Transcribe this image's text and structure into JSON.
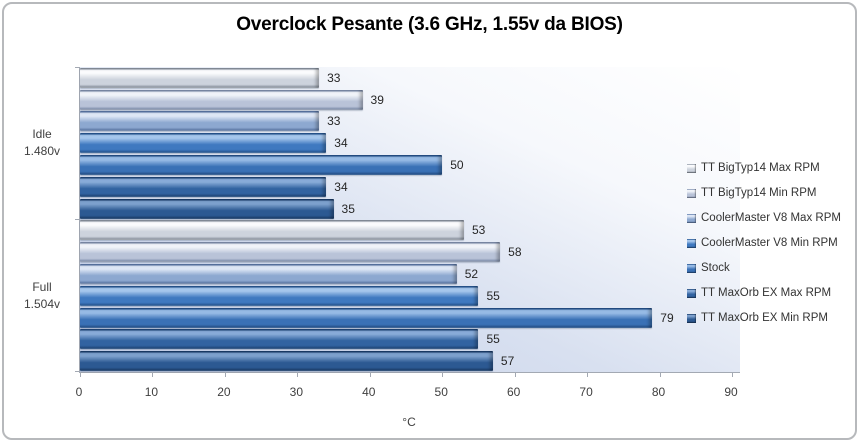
{
  "chart_data": {
    "type": "bar",
    "orientation": "horizontal",
    "title": "Overclock Pesante (3.6 GHz, 1.55v da BIOS)",
    "xlabel": "°C",
    "xlim": [
      0,
      90
    ],
    "x_ticks": [
      0,
      10,
      20,
      30,
      40,
      50,
      60,
      70,
      80,
      90
    ],
    "grid": false,
    "value_labels": true,
    "legend_position": "right",
    "categories": [
      {
        "lines": [
          "Idle",
          "1.480v"
        ]
      },
      {
        "lines": [
          "Full",
          "1.504v"
        ]
      }
    ],
    "series": [
      {
        "name": "TT BigTyp14 Max RPM",
        "values": [
          33,
          53
        ],
        "light": "#fafbfd",
        "base": "#cdd3dd",
        "dark": "#8f98a6"
      },
      {
        "name": "TT BigTyp14 Min RPM",
        "values": [
          39,
          58
        ],
        "light": "#f0f3f9",
        "base": "#b9c3d8",
        "dark": "#8494b3"
      },
      {
        "name": "CoolerMaster V8 Max RPM",
        "values": [
          33,
          52
        ],
        "light": "#dde6f5",
        "base": "#8da8d0",
        "dark": "#5f7cac"
      },
      {
        "name": "CoolerMaster V8 Min RPM",
        "values": [
          34,
          55
        ],
        "light": "#a5c6ec",
        "base": "#3f79c0",
        "dark": "#295a97"
      },
      {
        "name": "Stock",
        "values": [
          50,
          79
        ],
        "light": "#96bae5",
        "base": "#3a71b6",
        "dark": "#26538e"
      },
      {
        "name": "TT MaxOrb EX Max RPM",
        "values": [
          34,
          55
        ],
        "light": "#88abd8",
        "base": "#3263a1",
        "dark": "#21497d"
      },
      {
        "name": "TT MaxOrb EX Min RPM",
        "values": [
          35,
          57
        ],
        "light": "#7da0cd",
        "base": "#2c5992",
        "dark": "#1c3f6e"
      }
    ]
  },
  "colors": {
    "axis": "#a3a9b3",
    "frame_border": "#b7b9bc",
    "plot_bg_from": "#c3cfe8",
    "plot_bg_to": "#ffffff",
    "text": "#3f3f3f"
  }
}
